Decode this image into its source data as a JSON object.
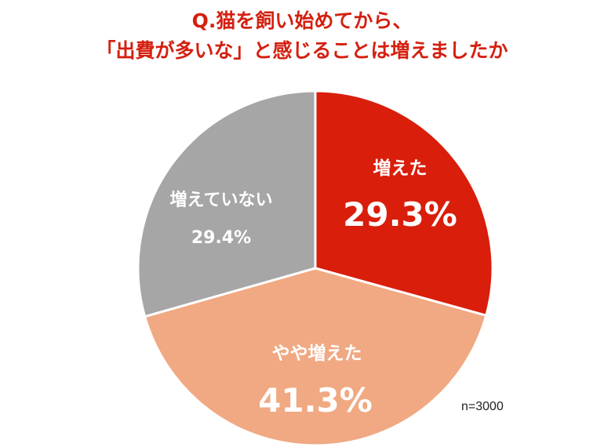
{
  "title": {
    "line1": "Q.猫を飼い始めてから、",
    "line2": "「出費が多いな」と感じることは増えましたか"
  },
  "note": "n=3000",
  "colors": {
    "title": "#d42010",
    "increased": "#d91e0b",
    "somewhat_increased": "#f0a982",
    "not_increased": "#a6a6a6"
  },
  "chart_data": {
    "type": "pie",
    "title": "",
    "start_angle_deg": 0,
    "direction": "clockwise",
    "slices": [
      {
        "label": "増えた",
        "value": 29.3,
        "value_label": "29.3%",
        "color": "#d91e0b"
      },
      {
        "label": "やや増えた",
        "value": 41.3,
        "value_label": "41.3%",
        "color": "#f0a982"
      },
      {
        "label": "増えていない",
        "value": 29.4,
        "value_label": "29.4%",
        "color": "#a6a6a6"
      }
    ]
  }
}
